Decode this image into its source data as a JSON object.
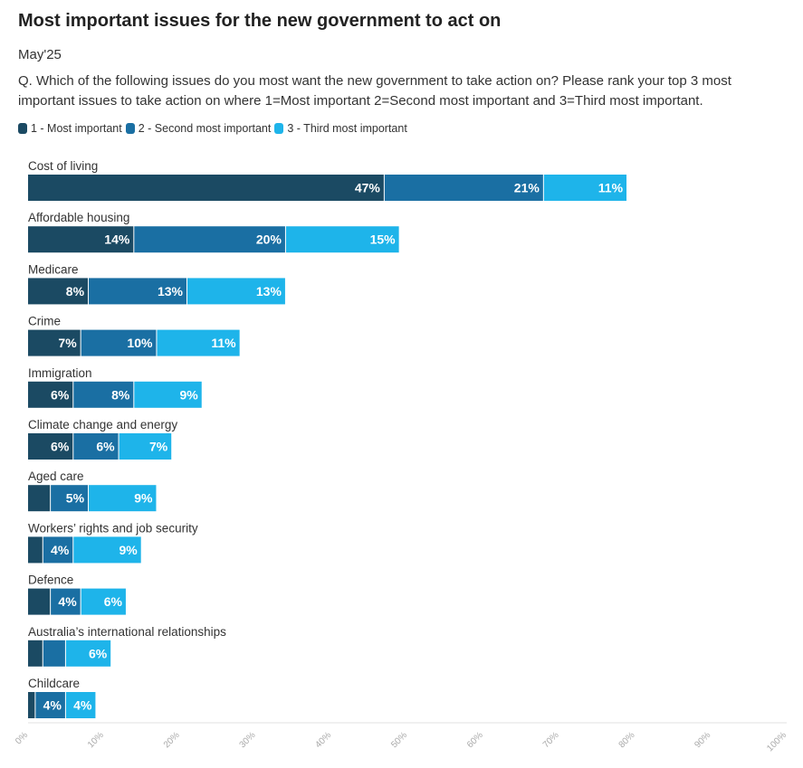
{
  "header": {
    "title": "Most important issues for the new government to act on",
    "subtitle": "May'25",
    "question": "Q. Which of the following issues do you most want the new government to take action on? Please rank your top 3 most important issues to take action on where 1=Most important 2=Second most important and 3=Third most important."
  },
  "chart_data": {
    "type": "bar",
    "orientation": "horizontal",
    "stacked": true,
    "title": "Most important issues for the new government to act on",
    "subtitle": "May'25",
    "categories": [
      "Cost of living",
      "Affordable housing",
      "Medicare",
      "Crime",
      "Immigration",
      "Climate change and energy",
      "Aged care",
      "Workers’ rights and job security",
      "Defence",
      "Australia’s international relationships",
      "Childcare"
    ],
    "series": [
      {
        "name": "1 - Most important",
        "color": "#1b4a63",
        "values": [
          47,
          14,
          8,
          7,
          6,
          6,
          3,
          2,
          3,
          2,
          1
        ],
        "labels": [
          "47%",
          "14%",
          "8%",
          "7%",
          "6%",
          "6%",
          "",
          "",
          "",
          "",
          ""
        ]
      },
      {
        "name": "2 - Second most important",
        "color": "#1a6fa3",
        "values": [
          21,
          20,
          13,
          10,
          8,
          6,
          5,
          4,
          4,
          3,
          4
        ],
        "labels": [
          "21%",
          "20%",
          "13%",
          "10%",
          "8%",
          "6%",
          "5%",
          "4%",
          "4%",
          "",
          "4%"
        ]
      },
      {
        "name": "3 - Third most important",
        "color": "#1eb4ea",
        "values": [
          11,
          15,
          13,
          11,
          9,
          7,
          9,
          9,
          6,
          6,
          4
        ],
        "labels": [
          "11%",
          "15%",
          "13%",
          "11%",
          "9%",
          "7%",
          "9%",
          "9%",
          "6%",
          "6%",
          "4%"
        ]
      }
    ],
    "xlim": [
      0,
      100
    ],
    "x_ticks": [
      "0%",
      "10%",
      "20%",
      "30%",
      "40%",
      "50%",
      "60%",
      "70%",
      "80%",
      "90%",
      "100%"
    ],
    "legend_position": "top-left",
    "grid": false
  }
}
